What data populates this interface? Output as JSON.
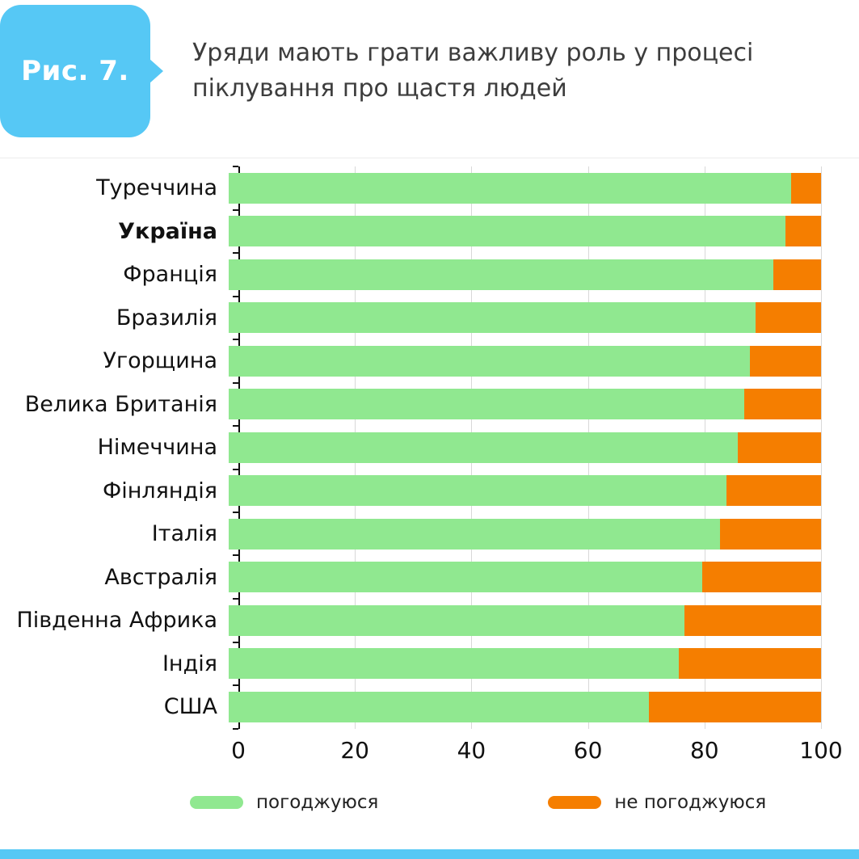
{
  "figure": {
    "badge": "Рис. 7.",
    "title": "Уряди мають грати важливу роль у процесі піклування про щастя людей"
  },
  "colors": {
    "accent_blue": "#56c8f5",
    "agree_green": "#90e890",
    "disagree_orange": "#f57e00",
    "gridline": "#d8d8d8",
    "axis": "#111111"
  },
  "chart_data": {
    "type": "bar",
    "orientation": "horizontal",
    "stacked": true,
    "grid": true,
    "xlim": [
      0,
      100
    ],
    "xticks": [
      0,
      20,
      40,
      60,
      80,
      100
    ],
    "legend_position": "bottom",
    "categories": [
      "Туреччина",
      "Україна",
      "Франція",
      "Бразилія",
      "Угорщина",
      "Велика Британія",
      "Німеччина",
      "Фінляндія",
      "Італія",
      "Австралія",
      "Південна Африка",
      "Індія",
      "США"
    ],
    "bold_category_index": 1,
    "series": [
      {
        "name": "погоджуюся",
        "color": "#90e890",
        "values": [
          95,
          94,
          92,
          89,
          88,
          87,
          86,
          84,
          83,
          80,
          77,
          76,
          71
        ]
      },
      {
        "name": "не погоджуюся",
        "color": "#f57e00",
        "values": [
          5,
          6,
          8,
          11,
          12,
          13,
          14,
          16,
          17,
          20,
          23,
          24,
          29
        ]
      }
    ]
  },
  "legend": {
    "items": [
      {
        "label": "погоджуюся"
      },
      {
        "label": "не погоджуюся"
      }
    ]
  }
}
